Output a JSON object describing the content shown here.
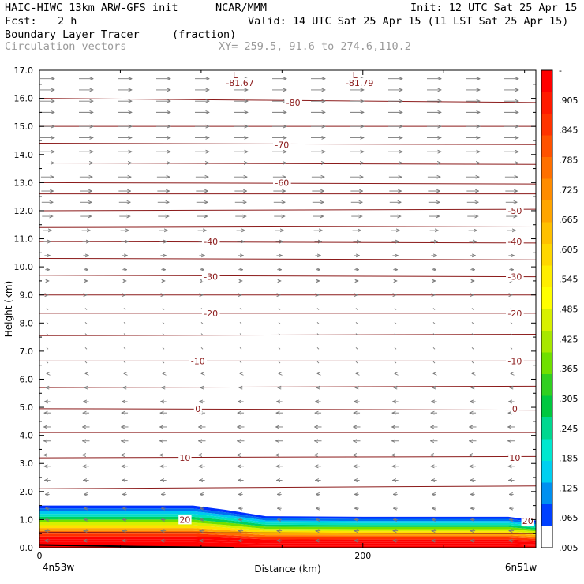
{
  "header": {
    "model": "HAIC-HIWC 13km ARW-GFS init",
    "org": "NCAR/MMM",
    "init": "Init: 12 UTC Sat 25 Apr 15",
    "fcst_label": "Fcst:",
    "fcst_value": "2 h",
    "valid": "Valid: 14 UTC Sat 25 Apr 15 (11 LST Sat 25 Apr 15)",
    "field": "Boundary Layer Tracer",
    "field_units": "(fraction)",
    "vectors": "Circulation vectors",
    "xy": "XY= 259.5, 91.6 to 274.6,110.2"
  },
  "chart_data": {
    "type": "heatmap",
    "xlabel": "Distance (km)",
    "ylabel": "Height (km)",
    "xlim": [
      0,
      307
    ],
    "ylim": [
      0,
      17
    ],
    "x_ticks": [
      {
        "value": 0,
        "label": "0"
      },
      {
        "value": 200,
        "label": "200"
      }
    ],
    "x_end_labels": [
      "4n53w",
      "6n51w"
    ],
    "y_ticks": [
      "0.0",
      "1.0",
      "2.0",
      "3.0",
      "4.0",
      "5.0",
      "6.0",
      "7.0",
      "8.0",
      "9.0",
      "10.0",
      "11.0",
      "12.0",
      "13.0",
      "14.0",
      "15.0",
      "16.0",
      "17.0"
    ],
    "colorbar": {
      "labels": [
        "-",
        ".905",
        ".845",
        ".785",
        ".725",
        ".665",
        ".605",
        ".545",
        ".485",
        ".425",
        ".365",
        ".305",
        ".245",
        ".185",
        ".125",
        ".065",
        ".005"
      ],
      "colors": [
        "#ff0000",
        "#ff1a00",
        "#ff3300",
        "#ff5200",
        "#ff7000",
        "#ff8c00",
        "#ffa500",
        "#ffc000",
        "#ffd700",
        "#ffee00",
        "#ffff00",
        "#d8f000",
        "#a8e800",
        "#70e000",
        "#30d020",
        "#00c840",
        "#00d890",
        "#00e8d0",
        "#00d0f0",
        "#0090f0",
        "#0040ff",
        "#ffffff"
      ]
    },
    "tracer_top_km": [
      {
        "x": 0,
        "y": 1.5
      },
      {
        "x": 95,
        "y": 1.5
      },
      {
        "x": 115,
        "y": 1.35
      },
      {
        "x": 140,
        "y": 1.12
      },
      {
        "x": 200,
        "y": 1.1
      },
      {
        "x": 290,
        "y": 1.1
      },
      {
        "x": 307,
        "y": 0.97
      }
    ],
    "temperature_contour_labels": [
      {
        "value": "-81.67",
        "x": 124,
        "y": 16.55,
        "tag": "L",
        "low": true
      },
      {
        "value": "-81.79",
        "x": 198,
        "y": 16.55,
        "tag": "L",
        "low": true
      },
      {
        "value": "-80",
        "x": 157,
        "y": 15.85
      },
      {
        "value": "-70",
        "x": 150,
        "y": 14.35
      },
      {
        "value": "-60",
        "x": 150,
        "y": 13.0
      },
      {
        "value": "-50",
        "x": 294,
        "y": 12.0
      },
      {
        "value": "-40",
        "x": 106,
        "y": 10.9
      },
      {
        "value": "-40",
        "x": 294,
        "y": 10.9
      },
      {
        "value": "-30",
        "x": 106,
        "y": 9.65
      },
      {
        "value": "-30",
        "x": 294,
        "y": 9.65
      },
      {
        "value": "-20",
        "x": 106,
        "y": 8.35
      },
      {
        "value": "-20",
        "x": 294,
        "y": 8.35
      },
      {
        "value": "-10",
        "x": 98,
        "y": 6.65
      },
      {
        "value": "-10",
        "x": 294,
        "y": 6.65
      },
      {
        "value": "0",
        "x": 98,
        "y": 4.95
      },
      {
        "value": "0",
        "x": 294,
        "y": 4.95
      },
      {
        "value": "10",
        "x": 90,
        "y": 3.2
      },
      {
        "value": "10",
        "x": 294,
        "y": 3.2
      },
      {
        "value": "20",
        "x": 90,
        "y": 1.0
      },
      {
        "value": "20",
        "x": 302,
        "y": 0.95
      }
    ],
    "temperature_contour_levels_km": [
      [
        16.0,
        15.85
      ],
      [
        15.0,
        15.0
      ],
      [
        14.4,
        14.35
      ],
      [
        13.7,
        13.65
      ],
      [
        13.0,
        12.95
      ],
      [
        12.6,
        12.6
      ],
      [
        12.0,
        12.05
      ],
      [
        11.4,
        11.45
      ],
      [
        10.9,
        10.85
      ],
      [
        10.3,
        10.25
      ],
      [
        9.7,
        9.65
      ],
      [
        9.0,
        9.0
      ],
      [
        8.35,
        8.35
      ],
      [
        7.55,
        7.6
      ],
      [
        6.65,
        6.65
      ],
      [
        5.7,
        5.75
      ],
      [
        4.95,
        4.9
      ],
      [
        4.1,
        4.1
      ],
      [
        3.2,
        3.25
      ],
      [
        2.1,
        2.2
      ]
    ],
    "wind_vectors": [
      {
        "y": 16.7,
        "u": 1.0
      },
      {
        "y": 16.3,
        "u": 1.0
      },
      {
        "y": 15.9,
        "u": 1.0
      },
      {
        "y": 15.5,
        "u": 1.0
      },
      {
        "y": 15.0,
        "u": 1.0
      },
      {
        "y": 14.6,
        "u": 1.0
      },
      {
        "y": 14.1,
        "u": 1.0
      },
      {
        "y": 13.7,
        "u": 0.95
      },
      {
        "y": 13.2,
        "u": 0.9
      },
      {
        "y": 12.7,
        "u": 0.85
      },
      {
        "y": 12.3,
        "u": 0.8
      },
      {
        "y": 11.8,
        "u": 0.75
      },
      {
        "y": 11.3,
        "u": 0.6
      },
      {
        "y": 10.9,
        "u": 0.5
      },
      {
        "y": 10.4,
        "u": 0.4
      },
      {
        "y": 9.9,
        "u": 0.3
      },
      {
        "y": 9.5,
        "u": 0.2
      },
      {
        "y": 9.0,
        "u": 0.12
      },
      {
        "y": 8.5,
        "u": 0.05
      },
      {
        "y": 8.0,
        "u": 0.05
      },
      {
        "y": 7.6,
        "u": 0.05
      },
      {
        "y": 7.1,
        "u": 0.05
      },
      {
        "y": 6.6,
        "u": -0.05
      },
      {
        "y": 6.2,
        "u": -0.1
      },
      {
        "y": 5.7,
        "u": -0.25
      },
      {
        "y": 5.2,
        "u": -0.4
      },
      {
        "y": 4.8,
        "u": -0.45
      },
      {
        "y": 4.3,
        "u": -0.5
      },
      {
        "y": 3.8,
        "u": -0.5
      },
      {
        "y": 3.3,
        "u": -0.5
      },
      {
        "y": 2.9,
        "u": -0.45
      },
      {
        "y": 2.4,
        "u": -0.4
      },
      {
        "y": 1.9,
        "u": -0.3
      },
      {
        "y": 1.4,
        "u": -0.3
      },
      {
        "y": 1.0,
        "u": -0.3
      },
      {
        "y": 0.6,
        "u": -0.35
      },
      {
        "y": 0.25,
        "u": -0.35
      }
    ],
    "grid": false,
    "legend": "right colorbar"
  }
}
